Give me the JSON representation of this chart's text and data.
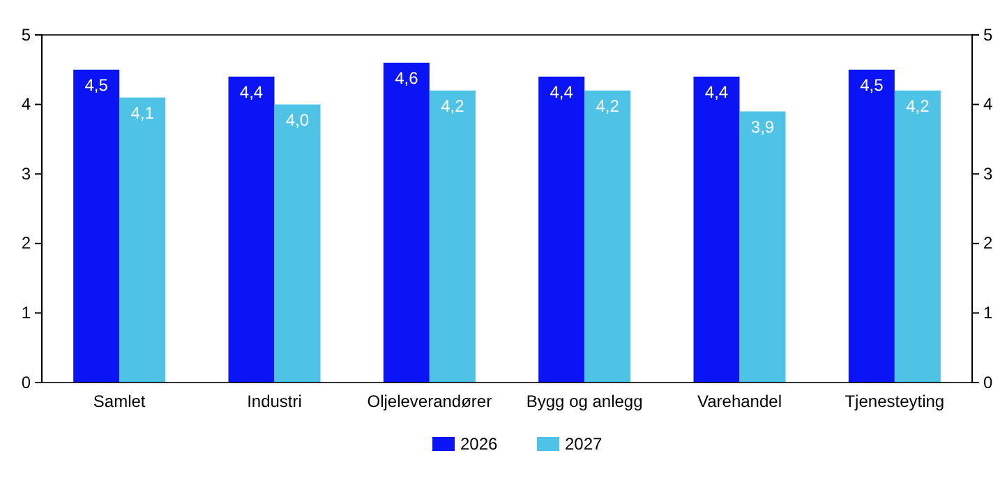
{
  "chart_data": {
    "type": "bar",
    "categories": [
      "Samlet",
      "Industri",
      "Oljeleverandører",
      "Bygg og anlegg",
      "Varehandel",
      "Tjenesteyting"
    ],
    "series": [
      {
        "name": "2026",
        "color": "#0a14f5",
        "values": [
          4.5,
          4.4,
          4.6,
          4.4,
          4.4,
          4.5
        ],
        "value_labels": [
          "4,5",
          "4,4",
          "4,6",
          "4,4",
          "4,4",
          "4,5"
        ]
      },
      {
        "name": "2027",
        "color": "#4fc3e6",
        "values": [
          4.1,
          4.0,
          4.2,
          4.2,
          3.9,
          4.2
        ],
        "value_labels": [
          "4,1",
          "4,0",
          "4,2",
          "4,2",
          "3,9",
          "4,2"
        ]
      }
    ],
    "ylim": [
      0,
      5
    ],
    "yticks": [
      0,
      1,
      2,
      3,
      4,
      5
    ],
    "y2lim": [
      0,
      5
    ],
    "y2ticks": [
      0,
      1,
      2,
      3,
      4,
      5
    ],
    "grid": false,
    "legend": "bottom"
  }
}
